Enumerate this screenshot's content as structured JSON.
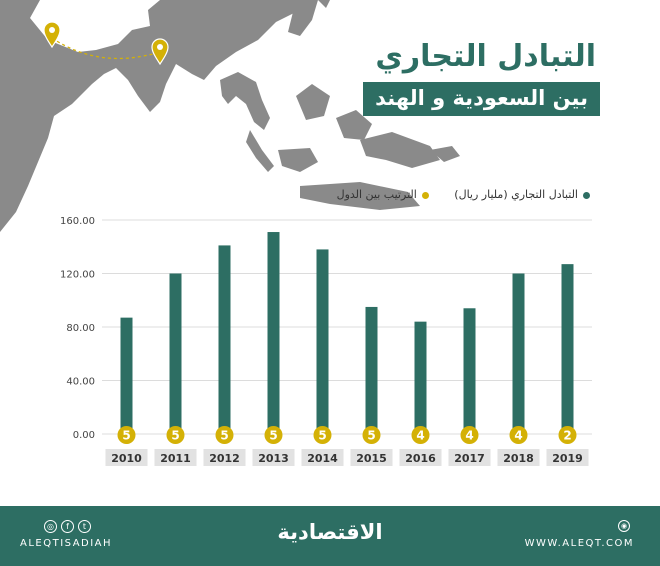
{
  "title": {
    "main": "التبادل التجاري",
    "sub": "بين السعودية و الهند"
  },
  "legend": {
    "trade": {
      "label": "التبادل التجاري (مليار ريال)",
      "color": "#2d6e63"
    },
    "rank": {
      "label": "الترتيب بين الدول",
      "color": "#d4b106"
    }
  },
  "chart_data": {
    "type": "bar",
    "categories": [
      "2010",
      "2011",
      "2012",
      "2013",
      "2014",
      "2015",
      "2016",
      "2017",
      "2018",
      "2019"
    ],
    "series": [
      {
        "name": "التبادل التجاري (مليار ريال)",
        "values": [
          87,
          120,
          141,
          151,
          138,
          95,
          84,
          94,
          120,
          127
        ]
      },
      {
        "name": "الترتيب بين الدول",
        "values": [
          5,
          5,
          5,
          5,
          5,
          5,
          4,
          4,
          4,
          2
        ]
      }
    ],
    "ylim": [
      0,
      160
    ],
    "yticks": [
      "0.00",
      "40.00",
      "80.00",
      "120.00",
      "160.00"
    ],
    "grid": true,
    "legend_position": "top-right"
  },
  "footer": {
    "handle": "ALEQTISADIAH",
    "logo": "الاقتصادية",
    "website": "WWW.ALEQT.COM",
    "social_icons": [
      "instagram-icon",
      "facebook-icon",
      "twitter-icon"
    ]
  },
  "colors": {
    "bar": "#2d6e63",
    "rank": "#d4b106",
    "land": "#8a8a8a"
  }
}
